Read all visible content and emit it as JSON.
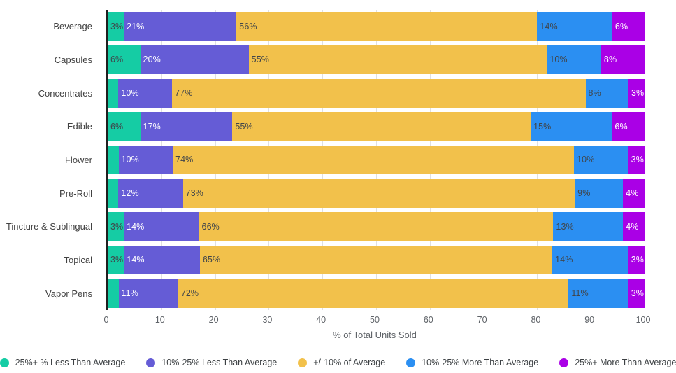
{
  "chart_data": {
    "type": "bar",
    "orientation": "horizontal",
    "stacked": true,
    "title": "",
    "xlabel": "% of Total Units Sold",
    "ylabel": "",
    "xlim": [
      0,
      100
    ],
    "x_ticks": [
      "0",
      "10",
      "20",
      "30",
      "40",
      "50",
      "60",
      "70",
      "80",
      "90",
      "100"
    ],
    "grid": true,
    "legend_position": "bottom",
    "categories": [
      "Beverage",
      "Capsules",
      "Concentrates",
      "Edible",
      "Flower",
      "Pre-Roll",
      "Tincture & Sublingual",
      "Topical",
      "Vapor Pens"
    ],
    "series": [
      {
        "name": "25%+ % Less Than Average",
        "color": "#15CCA4",
        "label_color": "#40454a",
        "values": [
          3,
          6,
          2,
          6,
          2,
          2,
          3,
          3,
          2
        ],
        "labels": [
          "3%",
          "6%",
          "",
          "6%",
          "",
          "",
          "3%",
          "3%",
          ""
        ]
      },
      {
        "name": "10%-25% Less Than Average",
        "color": "#655CD6",
        "label_color": "#ffffff",
        "values": [
          21,
          20,
          10,
          17,
          10,
          12,
          14,
          14,
          11
        ],
        "labels": [
          "21%",
          "20%",
          "10%",
          "17%",
          "10%",
          "12%",
          "14%",
          "14%",
          "11%"
        ]
      },
      {
        "name": "+/-10% of Average",
        "color": "#F2C14B",
        "label_color": "#40454a",
        "values": [
          56,
          55,
          77,
          55,
          74,
          73,
          66,
          65,
          72
        ],
        "labels": [
          "56%",
          "55%",
          "77%",
          "55%",
          "74%",
          "73%",
          "66%",
          "65%",
          "72%"
        ]
      },
      {
        "name": "10%-25% More Than Average",
        "color": "#2B8FF2",
        "label_color": "#40454a",
        "values": [
          14,
          10,
          8,
          15,
          10,
          9,
          13,
          14,
          11
        ],
        "labels": [
          "14%",
          "10%",
          "8%",
          "15%",
          "10%",
          "9%",
          "13%",
          "14%",
          "11%"
        ]
      },
      {
        "name": "25%+ More Than Average",
        "color": "#AA00E6",
        "label_color": "#ffffff",
        "values": [
          6,
          8,
          3,
          6,
          3,
          4,
          4,
          3,
          3
        ],
        "labels": [
          "6%",
          "8%",
          "3%",
          "6%",
          "3%",
          "4%",
          "4%",
          "3%",
          "3%"
        ]
      }
    ]
  },
  "colors": {
    "axis_line": "#1f1f1f",
    "gridline": "#e0e0e0",
    "tick_text": "#5f6368",
    "category_text": "#424242",
    "legend_text": "#3c4043"
  }
}
